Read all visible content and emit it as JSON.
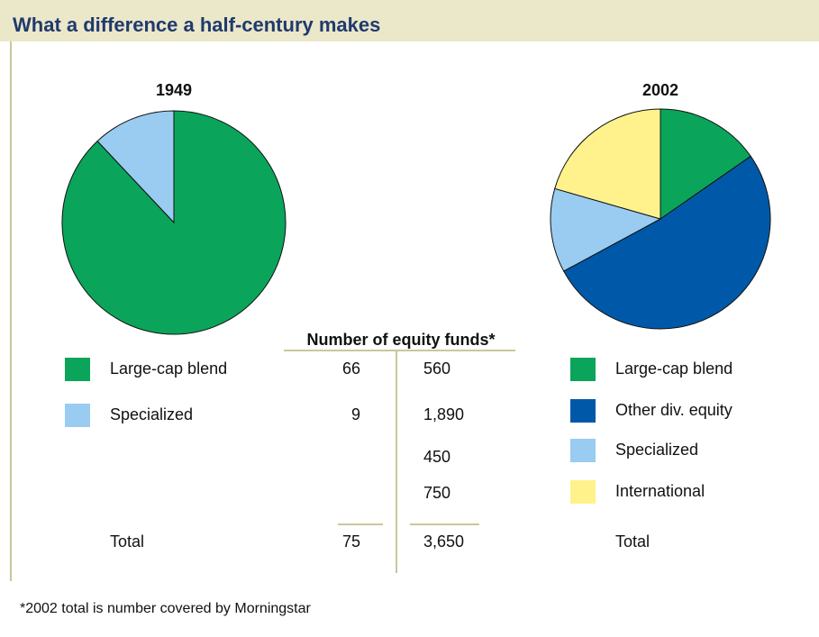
{
  "title": "What a difference a half-century makes",
  "chart_data": [
    {
      "type": "pie",
      "title": "1949",
      "categories": [
        "Large-cap blend",
        "Specialized"
      ],
      "values": [
        66,
        9
      ],
      "colors": [
        "#0aa55a",
        "#99ccf0"
      ],
      "total": 75
    },
    {
      "type": "pie",
      "title": "2002",
      "categories": [
        "Large-cap blend",
        "Other div. equity",
        "Specialized",
        "International"
      ],
      "values": [
        560,
        1890,
        450,
        750
      ],
      "value_labels": [
        "560",
        "1,890",
        "450",
        "750"
      ],
      "colors": [
        "#0aa55a",
        "#0059a8",
        "#99ccf0",
        "#fff28c"
      ],
      "total": {
        "value": 3650,
        "label": "3,650"
      }
    }
  ],
  "table": {
    "header": "Number of equity funds*",
    "total_text": "Total"
  },
  "footnote": "*2002 total is number covered by Morningstar"
}
